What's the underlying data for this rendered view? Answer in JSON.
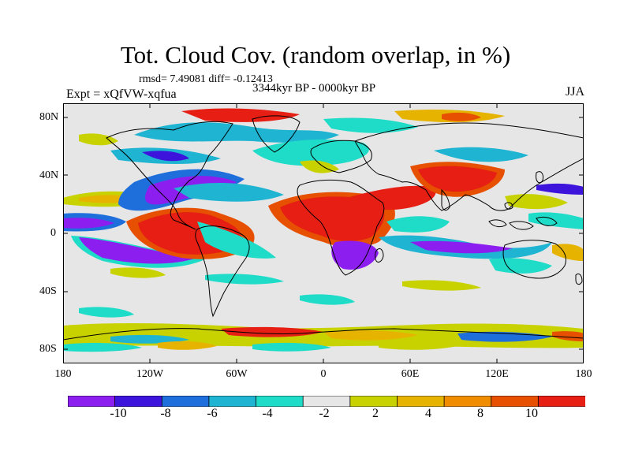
{
  "title": "Tot. Cloud Cov. (random overlap, in %)",
  "rmsd_line": "rmsd= 7.49081 diff= -0.12413",
  "period": "3344kyr BP - 0000kyr BP",
  "experiment": "Expt = xQfVW-xqfua",
  "season": "JJA",
  "map": {
    "lat_labels": [
      "80N",
      "40N",
      "0",
      "40S",
      "80S"
    ],
    "lon_labels": [
      "180",
      "120W",
      "60W",
      "0",
      "60E",
      "120E",
      "180"
    ]
  },
  "colorbar": {
    "colors": [
      "#8c1ef0",
      "#3c14dc",
      "#1e6edc",
      "#1eb4d2",
      "#1edcc8",
      "#e6e6e6",
      "#c8d200",
      "#e6b400",
      "#f08c00",
      "#e65000",
      "#e61e14"
    ],
    "labels": [
      "-10",
      "-8",
      "-6",
      "-4",
      "-2",
      "2",
      "4",
      "8",
      "10"
    ]
  }
}
